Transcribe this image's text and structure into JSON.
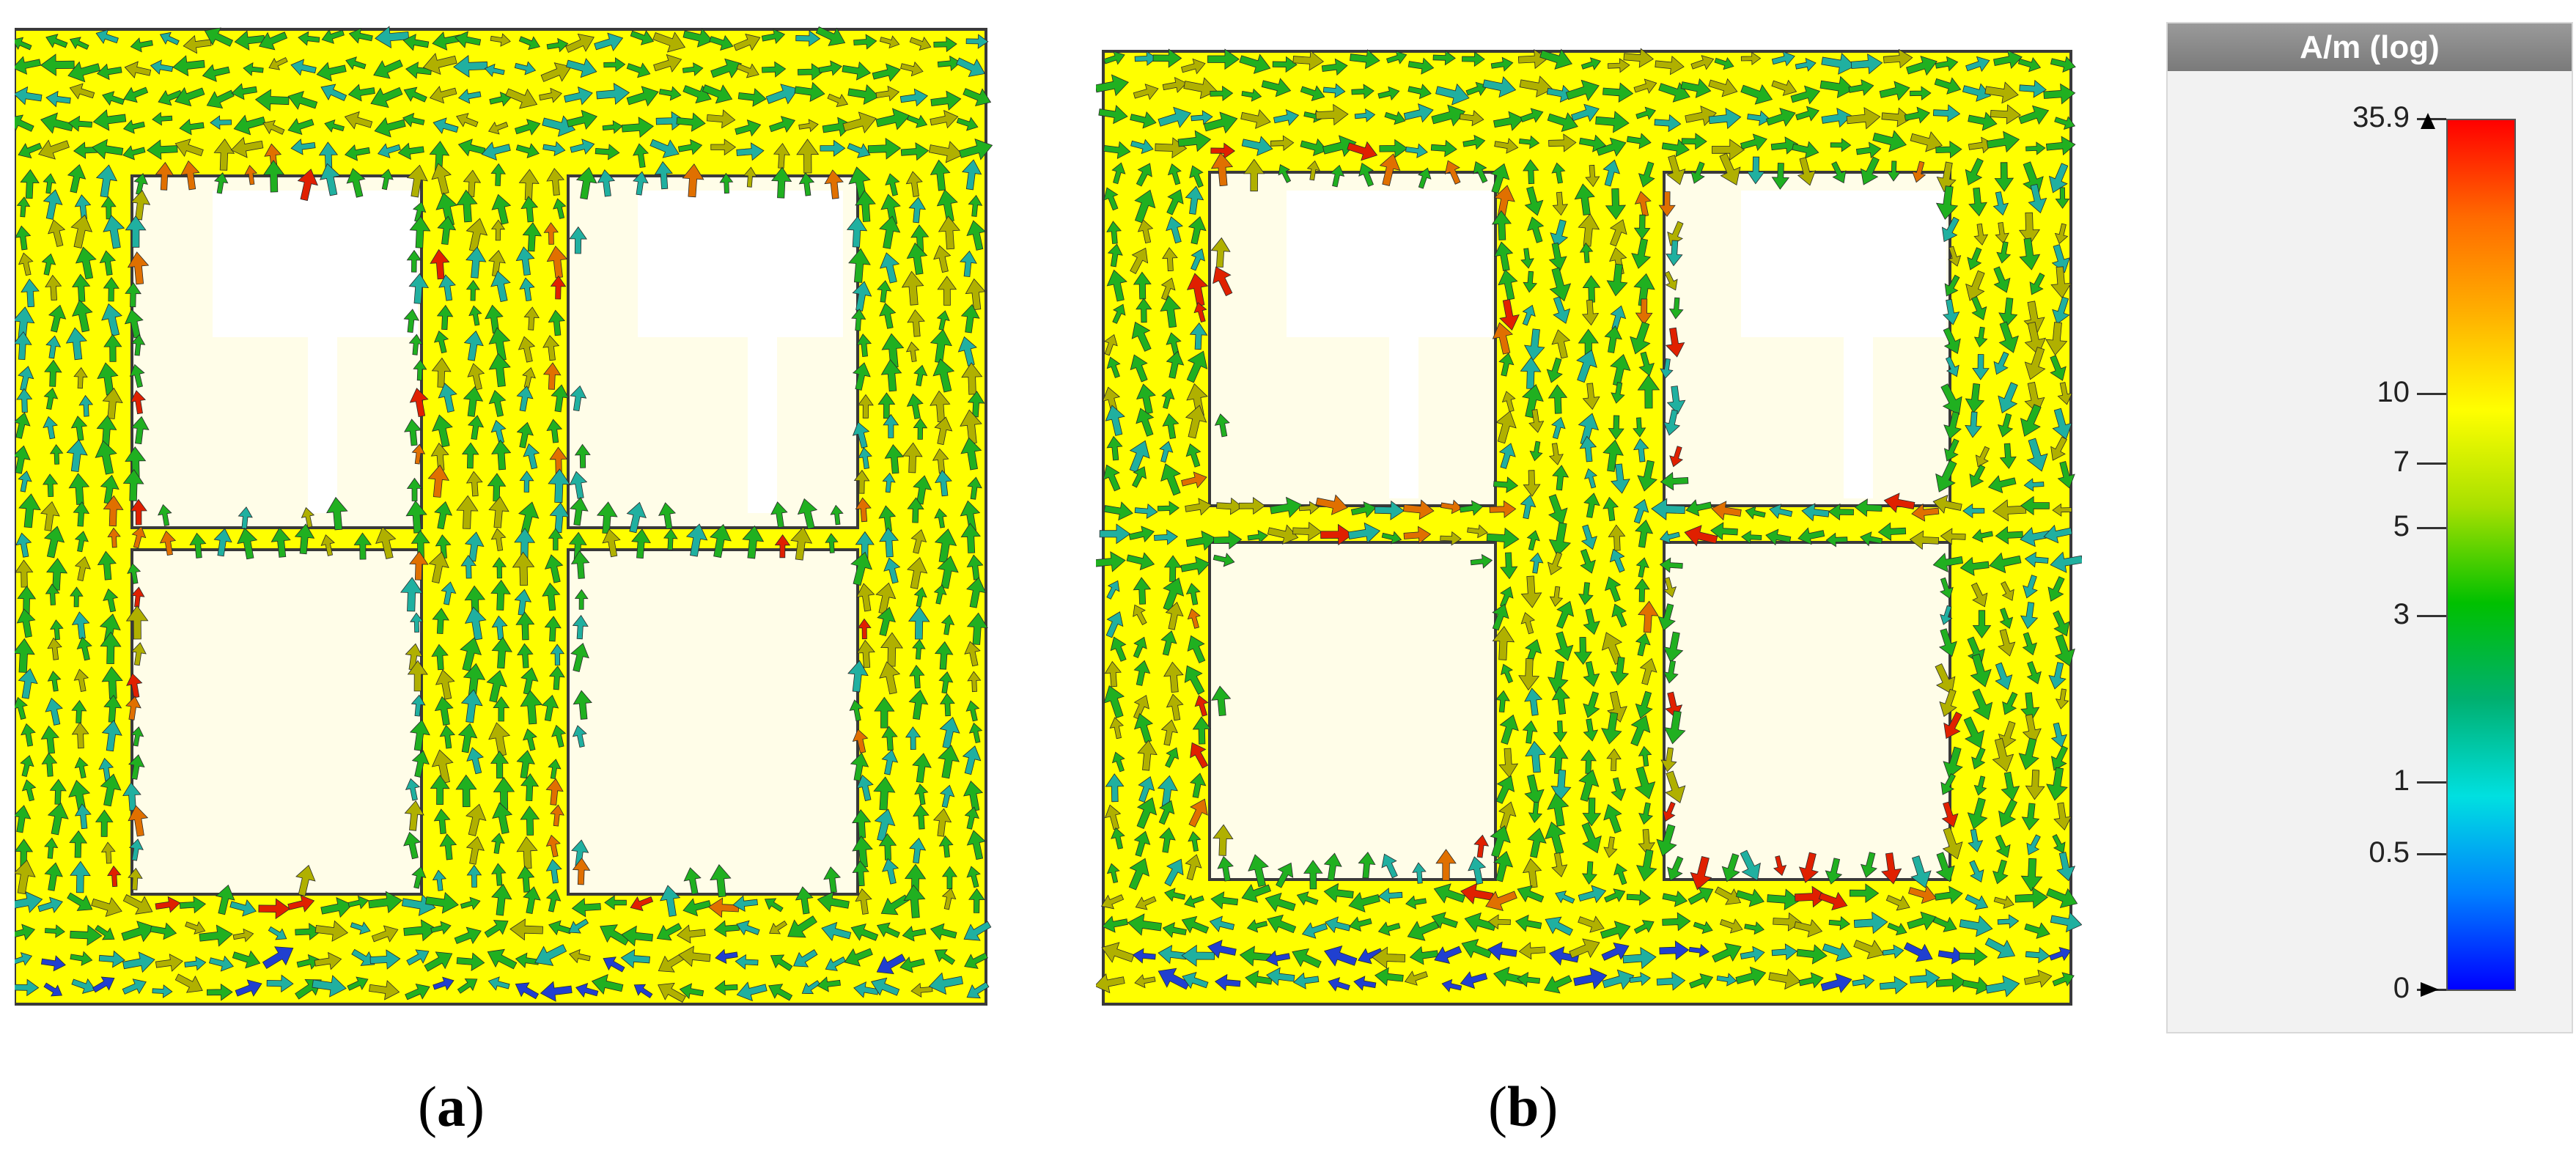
{
  "panels": [
    {
      "id": "a",
      "caption_open": "(",
      "caption_letter": "a",
      "caption_close": ")"
    },
    {
      "id": "b",
      "caption_open": "(",
      "caption_letter": "b",
      "caption_close": ")"
    }
  ],
  "legend": {
    "title": "A/m (log)",
    "max_label": "35.9",
    "ticks": [
      {
        "label": "35.9",
        "value": 35.9
      },
      {
        "label": "10",
        "value": 10
      },
      {
        "label": "7",
        "value": 7
      },
      {
        "label": "5",
        "value": 5
      },
      {
        "label": "3",
        "value": 3
      },
      {
        "label": "1",
        "value": 1
      },
      {
        "label": "0.5",
        "value": 0.5
      },
      {
        "label": "0",
        "value": 0
      }
    ],
    "gradient_colors": [
      "#ff0000",
      "#ff6a00",
      "#ffb000",
      "#ffff00",
      "#a8e000",
      "#00c000",
      "#00b070",
      "#00e0e0",
      "#0080ff",
      "#0000ff"
    ]
  },
  "colors": {
    "substrate": "#ffff00",
    "slot_fill": "#fffde8",
    "frame": "#3a3a3a",
    "arrow_red": "#e02000",
    "arrow_orange": "#e07000",
    "arrow_olive": "#b0b000",
    "arrow_green": "#20b020",
    "arrow_teal": "#20b0a0",
    "arrow_blue": "#2040d0"
  }
}
